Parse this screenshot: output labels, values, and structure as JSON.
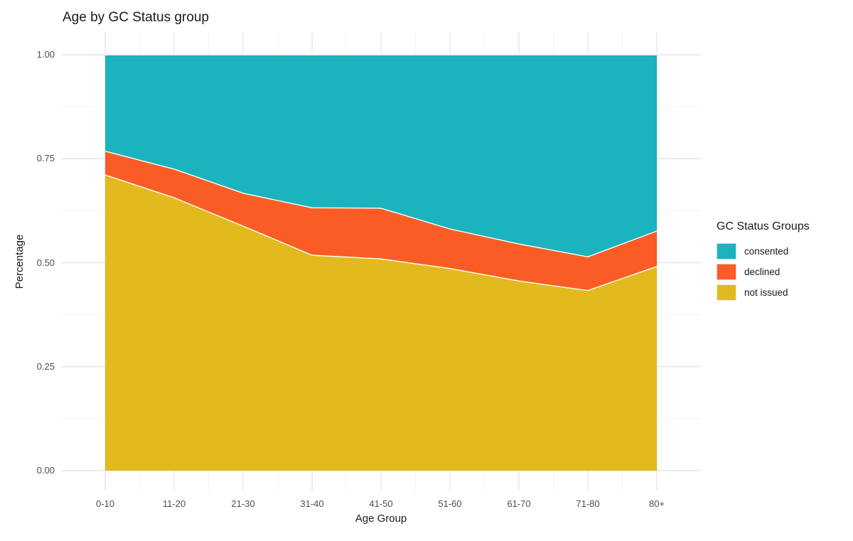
{
  "chart": {
    "title": "Age by GC Status group",
    "xlabel": "Age Group",
    "ylabel": "Percentage"
  },
  "legend": {
    "title": "GC Status Groups",
    "items": [
      {
        "label": "consented",
        "color": "#1bb3be"
      },
      {
        "label": "declined",
        "color": "#f95d25"
      },
      {
        "label": "not issued",
        "color": "#e2ba1e"
      }
    ]
  },
  "chart_data": {
    "type": "area",
    "subtype": "stacked-proportion",
    "title": "Age by GC Status group",
    "xlabel": "Age Group",
    "ylabel": "Percentage",
    "categories": [
      "0-10",
      "11-20",
      "21-30",
      "31-40",
      "41-50",
      "51-60",
      "61-70",
      "71-80",
      "80+"
    ],
    "series": [
      {
        "name": "consented",
        "color": "#1bb3be",
        "values": [
          0.232,
          0.275,
          0.333,
          0.368,
          0.369,
          0.419,
          0.455,
          0.486,
          0.424
        ]
      },
      {
        "name": "declined",
        "color": "#f95d25",
        "values": [
          0.057,
          0.069,
          0.079,
          0.114,
          0.122,
          0.095,
          0.089,
          0.081,
          0.085
        ]
      },
      {
        "name": "not issued",
        "color": "#e2ba1e",
        "values": [
          0.711,
          0.656,
          0.588,
          0.518,
          0.509,
          0.486,
          0.456,
          0.433,
          0.491
        ]
      }
    ],
    "stack_order_bottom_to_top": [
      "not issued",
      "declined",
      "consented"
    ],
    "ylim": [
      0,
      1
    ],
    "y_tick_labels": [
      "0.00",
      "0.25",
      "0.50",
      "0.75",
      "1.00"
    ],
    "y_tick_values": [
      0,
      0.25,
      0.5,
      0.75,
      1.0
    ],
    "y_minor_values": [
      0.125,
      0.375,
      0.625,
      0.875
    ],
    "grid": true,
    "legend_position": "right",
    "legend_title": "GC Status Groups",
    "boundary_stroke": "#ffffff"
  },
  "colors": {
    "background": "#ffffff",
    "grid_major": "#e6e6e6",
    "grid_minor": "#f2f2f2",
    "tick_text": "#4d4d4d",
    "title_text": "#1a1a1a"
  }
}
